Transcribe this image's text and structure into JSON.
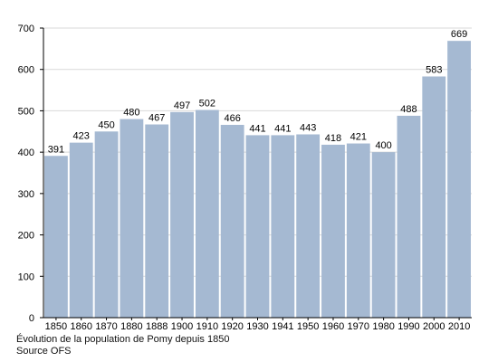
{
  "chart_data": {
    "type": "bar",
    "categories": [
      "1850",
      "1860",
      "1870",
      "1880",
      "1888",
      "1900",
      "1910",
      "1920",
      "1930",
      "1941",
      "1950",
      "1960",
      "1970",
      "1980",
      "1990",
      "2000",
      "2010"
    ],
    "values": [
      391,
      423,
      450,
      480,
      467,
      497,
      502,
      466,
      441,
      441,
      443,
      418,
      421,
      400,
      488,
      583,
      669
    ],
    "ylim": [
      0,
      700
    ],
    "yticks": [
      0,
      100,
      200,
      300,
      400,
      500,
      600,
      700
    ],
    "grid": true,
    "bar_color": "#a5b9d2",
    "caption_line1": "Évolution de la population de Pomy depuis 1850",
    "caption_line2": "Source OFS"
  }
}
